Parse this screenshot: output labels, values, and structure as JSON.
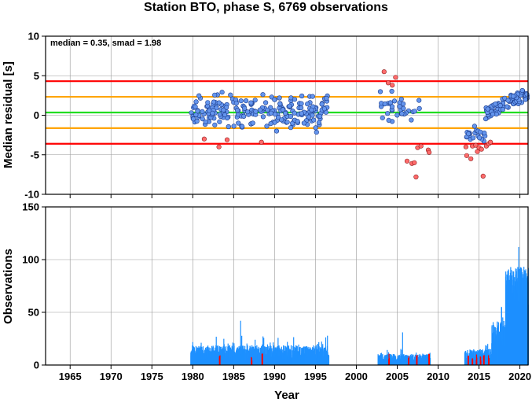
{
  "title": "Station BTO, phase S, 6769 observations",
  "top_panel": {
    "ylabel": "Median residual [s]",
    "annotation": "median = 0.35, smad = 1.98",
    "yticks": [
      "10",
      "5",
      "0",
      "-5",
      "-10"
    ]
  },
  "bottom_panel": {
    "ylabel": "Observations",
    "yticks": [
      "150",
      "100",
      "50",
      "0"
    ]
  },
  "xlabel": "Year",
  "xticks": [
    "1965",
    "1970",
    "1975",
    "1980",
    "1985",
    "1990",
    "1995",
    "2000",
    "2005",
    "2010",
    "2015",
    "2020"
  ],
  "colors": {
    "inlier_point": "#6495ed",
    "outlier_point": "#ff6b6b",
    "median_line": "#22dd22",
    "smad_1_line": "#ffa500",
    "smad_2_line": "#ff0000",
    "bar_normal": "#1e90ff",
    "bar_outlier": "#ff0000"
  },
  "chart_data": [
    {
      "type": "scatter",
      "xlabel": "Year",
      "ylabel": "Median residual [s]",
      "xlim": [
        1962,
        2021
      ],
      "ylim": [
        -10,
        10
      ],
      "grid": true,
      "reference_lines": [
        {
          "y": 4.31,
          "color": "#ff0000"
        },
        {
          "y": 2.33,
          "color": "#ffa500"
        },
        {
          "y": 0.35,
          "color": "#22dd22"
        },
        {
          "y": -1.63,
          "color": "#ffa500"
        },
        {
          "y": -3.61,
          "color": "#ff0000"
        }
      ],
      "outliers": [
        [
          1981.4,
          -3.0
        ],
        [
          1983.2,
          -4.0
        ],
        [
          1984.2,
          -3.1
        ],
        [
          1988.4,
          -3.4
        ],
        [
          2003.4,
          5.5
        ],
        [
          2003.9,
          4.1
        ],
        [
          2004.8,
          4.8
        ],
        [
          2004.4,
          3.8
        ],
        [
          2006.2,
          -5.8
        ],
        [
          2006.8,
          -6.1
        ],
        [
          2007.1,
          -6.0
        ],
        [
          2007.3,
          -7.8
        ],
        [
          2007.5,
          -4.1
        ],
        [
          2007.9,
          -3.9
        ],
        [
          2008.8,
          -4.4
        ],
        [
          2008.9,
          -4.7
        ],
        [
          2013.5,
          -5.1
        ],
        [
          2014.0,
          -5.5
        ],
        [
          2013.4,
          -4.0
        ],
        [
          2014.2,
          -3.9
        ],
        [
          2014.6,
          -3.8
        ],
        [
          2015.0,
          -4.1
        ],
        [
          2015.3,
          -4.3
        ],
        [
          2015.5,
          -7.7
        ],
        [
          2015.9,
          -3.9
        ],
        [
          2016.2,
          -3.6
        ],
        [
          2016.4,
          -3.4
        ],
        [
          2014.8,
          -4.6
        ]
      ],
      "inlier_segments": [
        {
          "from": 1979.8,
          "to": 1996.5,
          "count": 230,
          "center": 0.5,
          "spread": 1.5
        },
        {
          "from": 2002.8,
          "to": 2007.8,
          "count": 35,
          "center": 0.6,
          "spread": 1.4
        },
        {
          "from": 2013.4,
          "to": 2015.8,
          "count": 22,
          "center": -2.4,
          "spread": 0.6
        },
        {
          "from": 2015.8,
          "to": 2020.9,
          "count": 90,
          "center": 2.2,
          "spread": 0.8
        }
      ]
    },
    {
      "type": "bar",
      "xlabel": "Year",
      "ylabel": "Observations",
      "xlim": [
        1962,
        2021
      ],
      "ylim": [
        0,
        150
      ],
      "grid": true,
      "segments": [
        {
          "from": 1979.7,
          "to": 1996.6,
          "base": 9,
          "amp": 7,
          "max": 42,
          "peak_year": 1985.8
        },
        {
          "from": 2002.6,
          "to": 2009.0,
          "base": 5,
          "amp": 4,
          "max": 31,
          "peak_year": 2005.6
        },
        {
          "from": 2013.2,
          "to": 2016.5,
          "base": 7,
          "amp": 6,
          "max": 20,
          "peak_year": 2016.0
        },
        {
          "from": 2016.5,
          "to": 2018.2,
          "base": 25,
          "amp": 12,
          "max": 55,
          "peak_year": 2017.7
        },
        {
          "from": 2018.2,
          "to": 2021.0,
          "base": 65,
          "amp": 20,
          "max": 112,
          "peak_year": 2019.8
        }
      ],
      "outlier_years": [
        1983.2,
        1987.1,
        1988.4,
        2003.9,
        2006.3,
        2007.3,
        2008.8,
        2013.6,
        2014.1,
        2014.6,
        2015.1,
        2015.5,
        2016.1
      ]
    }
  ]
}
